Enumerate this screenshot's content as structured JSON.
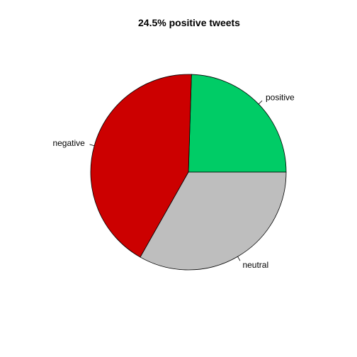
{
  "chart_data": {
    "type": "pie",
    "title": "24.5% positive tweets",
    "categories": [
      "positive",
      "negative",
      "neutral"
    ],
    "values": [
      24.5,
      42.3,
      33.2
    ],
    "colors": [
      "#00CC66",
      "#CC0000",
      "#BEBEBE"
    ],
    "start": "3 o'clock",
    "direction": "counterclockwise",
    "legend": "none"
  }
}
